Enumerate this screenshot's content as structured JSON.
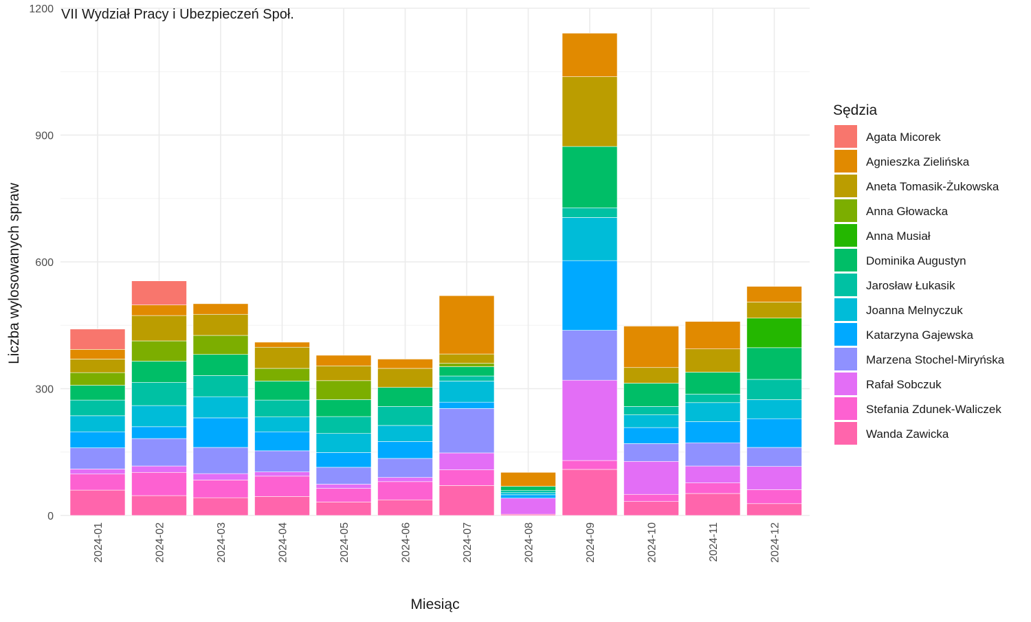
{
  "chart_data": {
    "type": "bar",
    "stacked": true,
    "title": "VII Wydział Pracy i Ubezpieczeń Społ.",
    "xlabel": "Miesiąc",
    "ylabel": "Liczba wylosowanych spraw",
    "ylim": [
      0,
      1200
    ],
    "yticks": [
      0,
      300,
      600,
      900,
      1200
    ],
    "grid": true,
    "legend_title": "Sędzia",
    "legend_position": "right",
    "categories": [
      "2024-01",
      "2024-02",
      "2024-03",
      "2024-04",
      "2024-05",
      "2024-06",
      "2024-07",
      "2024-08",
      "2024-09",
      "2024-10",
      "2024-11",
      "2024-12"
    ],
    "series": [
      {
        "name": "Wanda Zawicka",
        "color": "#FF65AC",
        "values": [
          60,
          47,
          42,
          45,
          32,
          37,
          71,
          3,
          109,
          33,
          52,
          28
        ]
      },
      {
        "name": "Stefania Zdunek-Waliczek",
        "color": "#FD61D1",
        "values": [
          38,
          55,
          42,
          48,
          32,
          43,
          37,
          0,
          21,
          17,
          25,
          33
        ]
      },
      {
        "name": "Rafał Sobczuk",
        "color": "#E36EF6",
        "values": [
          12,
          15,
          15,
          10,
          10,
          10,
          40,
          38,
          190,
          78,
          40,
          55
        ]
      },
      {
        "name": "Marzena Stochel-Miryńska",
        "color": "#8F91FF",
        "values": [
          50,
          65,
          62,
          50,
          40,
          45,
          105,
          0,
          118,
          42,
          55,
          45
        ]
      },
      {
        "name": "Katarzyna Gajewska",
        "color": "#00A9FF",
        "values": [
          38,
          28,
          70,
          45,
          35,
          40,
          15,
          8,
          165,
          38,
          50,
          68
        ]
      },
      {
        "name": "Joanna Melnyczuk",
        "color": "#00BCD8",
        "values": [
          38,
          50,
          50,
          35,
          45,
          38,
          50,
          5,
          102,
          30,
          45,
          45
        ]
      },
      {
        "name": "Jarosław Łukasik",
        "color": "#00C1A3",
        "values": [
          37,
          55,
          50,
          40,
          40,
          45,
          12,
          5,
          23,
          20,
          20,
          48
        ]
      },
      {
        "name": "Dominika Augustyn",
        "color": "#00BE67",
        "values": [
          35,
          50,
          50,
          45,
          40,
          45,
          22,
          10,
          145,
          55,
          52,
          75
        ]
      },
      {
        "name": "Anna Musiał",
        "color": "#24B700",
        "values": [
          0,
          0,
          0,
          0,
          0,
          0,
          0,
          0,
          0,
          0,
          0,
          70
        ]
      },
      {
        "name": "Anna Głowacka",
        "color": "#7CAE00",
        "values": [
          30,
          48,
          45,
          30,
          45,
          0,
          8,
          0,
          0,
          0,
          0,
          0
        ]
      },
      {
        "name": "Aneta Tomasik-Żukowska",
        "color": "#BB9D00",
        "values": [
          32,
          60,
          50,
          50,
          35,
          45,
          22,
          0,
          165,
          37,
          55,
          38
        ]
      },
      {
        "name": "Agnieszka Zielińska",
        "color": "#E18A00",
        "values": [
          23,
          25,
          25,
          12,
          25,
          22,
          138,
          33,
          103,
          98,
          65,
          37
        ]
      },
      {
        "name": "Agata Micorek",
        "color": "#F8766D",
        "values": [
          48,
          57,
          0,
          0,
          0,
          0,
          0,
          0,
          0,
          0,
          0,
          0
        ]
      }
    ],
    "legend_order": [
      "Agata Micorek",
      "Agnieszka Zielińska",
      "Aneta Tomasik-Żukowska",
      "Anna Głowacka",
      "Anna Musiał",
      "Dominika Augustyn",
      "Jarosław Łukasik",
      "Joanna Melnyczuk",
      "Katarzyna Gajewska",
      "Marzena Stochel-Miryńska",
      "Rafał Sobczuk",
      "Stefania Zdunek-Waliczek",
      "Wanda Zawicka"
    ]
  }
}
